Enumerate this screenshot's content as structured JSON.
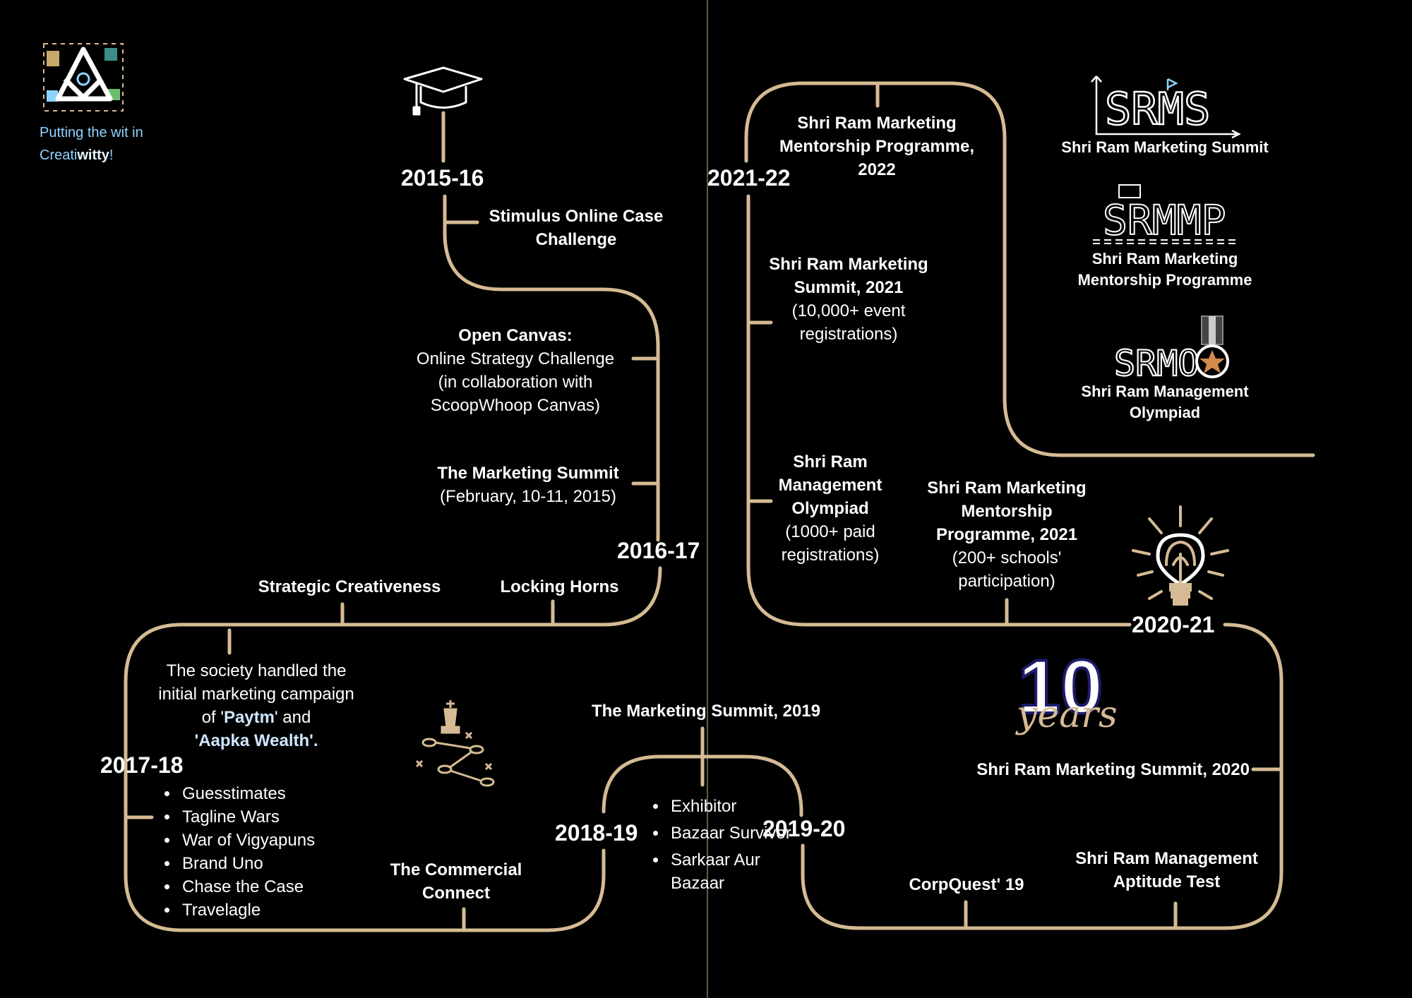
{
  "brand": {
    "tagline_line1": "Putting the wit in",
    "tagline_line2_a": "Creati",
    "tagline_line2_b": "witty",
    "tagline_line2_c": "!"
  },
  "colors": {
    "path": "#d5bb93",
    "background": "#000000",
    "accent": "#cfe6ff"
  },
  "years": {
    "y2015": "2015-16",
    "y2016": "2016-17",
    "y2017": "2017-18",
    "y2018": "2018-19",
    "y2019": "2019-20",
    "y2020": "2020-21",
    "y2021": "2021-22"
  },
  "events": {
    "stimulus": "Stimulus Online Case Challenge",
    "open_canvas_title": "Open Canvas:",
    "open_canvas_l1": "Online Strategy Challenge",
    "open_canvas_l2": "(in collaboration with",
    "open_canvas_l3": "ScoopWhoop Canvas)",
    "tms_title": "The Marketing Summit",
    "tms_date": "(February, 10-11, 2015)",
    "strategic": "Strategic Creativeness",
    "locking": "Locking Horns",
    "society_l1": "The society handled the",
    "society_l2": "initial marketing campaign",
    "society_l3a": "of '",
    "society_l3b": "Paytm",
    "society_l3c": "' and",
    "society_l4a": "'",
    "society_l4b": "Aapka Wealth",
    "society_l4c": "'.",
    "list_1718": [
      "Guesstimates",
      "Tagline Wars",
      "War of Vigyapuns",
      "Brand Uno",
      "Chase the Case",
      "Travelagle"
    ],
    "commercial": "The Commercial Connect",
    "tms2019": "The Marketing Summit, 2019",
    "list_1819": [
      "Exhibitor",
      "Bazaar Survivor",
      "Sarkaar Aur Bazaar"
    ],
    "corpquest": "CorpQuest' 19",
    "srmat": "Shri Ram Management Aptitude Test",
    "srms2020": "Shri Ram Marketing Summit, 2020",
    "srmmp2021_title": "Shri Ram Marketing Mentorship Programme, 2021",
    "srmmp2021_sub": "(200+ schools' participation)",
    "srmo_title": "Shri Ram Management Olympiad",
    "srmo_sub": "(1000+ paid registrations)",
    "srms2021_title": "Shri Ram Marketing Summit, 2021",
    "srms2021_sub": "(10,000+ event registrations)",
    "srmmp2022": "Shri Ram Marketing Mentorship Programme, 2022"
  },
  "logos": {
    "srms_mark": "SRMS",
    "srms_caption": "Shri Ram Marketing Summit",
    "srmmp_mark": "SRMMP",
    "srmmp_caption": "Shri Ram Marketing Mentorship Programme",
    "srmo_mark": "SRMO",
    "srmo_caption": "Shri Ram Management Olympiad",
    "ten": "10",
    "years_word": "years"
  },
  "icons": [
    "graduation-cap-icon",
    "chess-strategy-icon",
    "lightbulb-icon",
    "society-logo-icon"
  ]
}
